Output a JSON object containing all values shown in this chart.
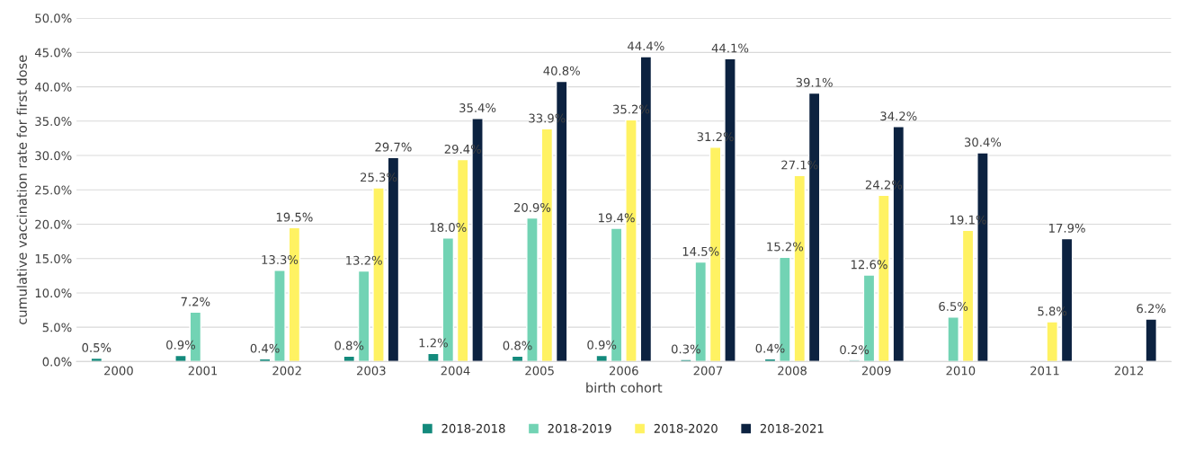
{
  "chart_data": {
    "type": "bar",
    "xlabel": "birth cohort",
    "ylabel": "cumulative vaccination rate for first dose",
    "categories": [
      "2000",
      "2001",
      "2002",
      "2003",
      "2004",
      "2005",
      "2006",
      "2007",
      "2008",
      "2009",
      "2010",
      "2011",
      "2012"
    ],
    "series": [
      {
        "name": "2018-2018",
        "color": "#138a7c",
        "values": [
          0.5,
          0.9,
          0.4,
          0.8,
          1.2,
          0.8,
          0.9,
          0.3,
          0.4,
          0.2,
          null,
          null,
          null
        ],
        "value_labels": [
          "0.5%",
          "0.9%",
          "0.4%",
          "0.8%",
          "1.2%",
          "0.8%",
          "0.9%",
          "0.3%",
          "0.4%",
          "0.2%",
          null,
          null,
          null
        ]
      },
      {
        "name": "2018-2019",
        "color": "#72d3b4",
        "values": [
          null,
          7.2,
          13.3,
          13.2,
          18.0,
          20.9,
          19.4,
          14.5,
          15.2,
          12.6,
          6.5,
          null,
          null
        ],
        "value_labels": [
          null,
          "7.2%",
          "13.3%",
          "13.2%",
          "18.0%",
          "20.9%",
          "19.4%",
          "14.5%",
          "15.2%",
          "12.6%",
          "6.5%",
          null,
          null
        ]
      },
      {
        "name": "2018-2020",
        "color": "#fff262",
        "values": [
          null,
          null,
          19.5,
          25.3,
          29.4,
          33.9,
          35.2,
          31.2,
          27.1,
          24.2,
          19.1,
          5.8,
          null
        ],
        "value_labels": [
          null,
          null,
          "19.5%",
          "25.3%",
          "29.4%",
          "33.9%",
          "35.2%",
          "31.2%",
          "27.1%",
          "24.2%",
          "19.1%",
          "5.8%",
          null
        ]
      },
      {
        "name": "2018-2021",
        "color": "#0c2240",
        "values": [
          null,
          null,
          null,
          29.7,
          35.4,
          40.8,
          44.4,
          44.1,
          39.1,
          34.2,
          30.4,
          17.9,
          6.2
        ],
        "value_labels": [
          null,
          null,
          null,
          "29.7%",
          "35.4%",
          "40.8%",
          "44.4%",
          "44.1%",
          "39.1%",
          "34.2%",
          "30.4%",
          "17.9%",
          "6.2%"
        ]
      }
    ],
    "ylim": [
      0,
      50
    ],
    "yticks": [
      {
        "value": 0,
        "label": "0.0%"
      },
      {
        "value": 5,
        "label": "5.0%"
      },
      {
        "value": 10,
        "label": "10.0%"
      },
      {
        "value": 15,
        "label": "15.0%"
      },
      {
        "value": 20,
        "label": "20.0%"
      },
      {
        "value": 25,
        "label": "25.0%"
      },
      {
        "value": 30,
        "label": "30.0%"
      },
      {
        "value": 35,
        "label": "35.0%"
      },
      {
        "value": 40,
        "label": "40.0%"
      },
      {
        "value": 45,
        "label": "45.0%"
      },
      {
        "value": 50,
        "label": "50.0%"
      }
    ],
    "grid": "y",
    "legend": "bottom"
  }
}
